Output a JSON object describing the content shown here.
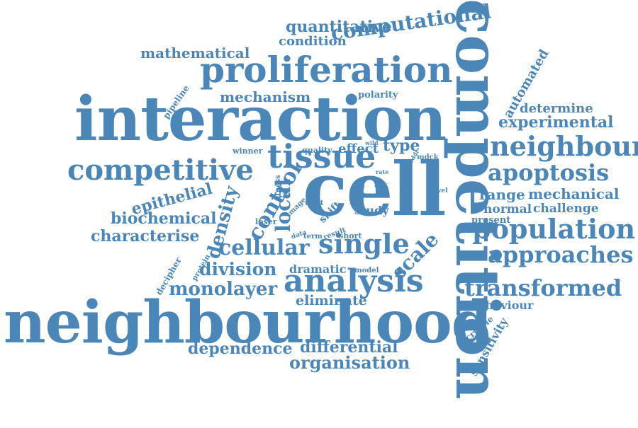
{
  "color": "#4a86b8",
  "words": [
    "competition",
    "neighbourhood",
    "interaction",
    "cell",
    "proliferation",
    "competitive",
    "tissue",
    "neighbour",
    "single",
    "analysis",
    "population",
    "apoptosis",
    "approaches",
    "transformed",
    "computational",
    "cellular",
    "control",
    "density",
    "local",
    "scale",
    "mathematical",
    "quantitative",
    "condition",
    "mechanism",
    "experimental",
    "division",
    "monolayer",
    "biochemical",
    "characterise",
    "epithelial",
    "organisation",
    "dependence",
    "differential",
    "eliminate",
    "dramatic",
    "range",
    "mechanical",
    "normal",
    "challenge",
    "determine",
    "automated",
    "behaviour",
    "sensitivity",
    "scribble",
    "pipeline",
    "polarity",
    "effect",
    "type",
    "quality",
    "winner",
    "loser",
    "study",
    "shift",
    "fitness",
    "unfit",
    "image",
    "present",
    "decipher",
    "protein",
    "model",
    "data",
    "term",
    "result",
    "short",
    "wild",
    "mdck",
    "addr",
    "rate",
    "tool",
    "cue",
    "lack",
    "rise",
    "reveal",
    "level"
  ]
}
